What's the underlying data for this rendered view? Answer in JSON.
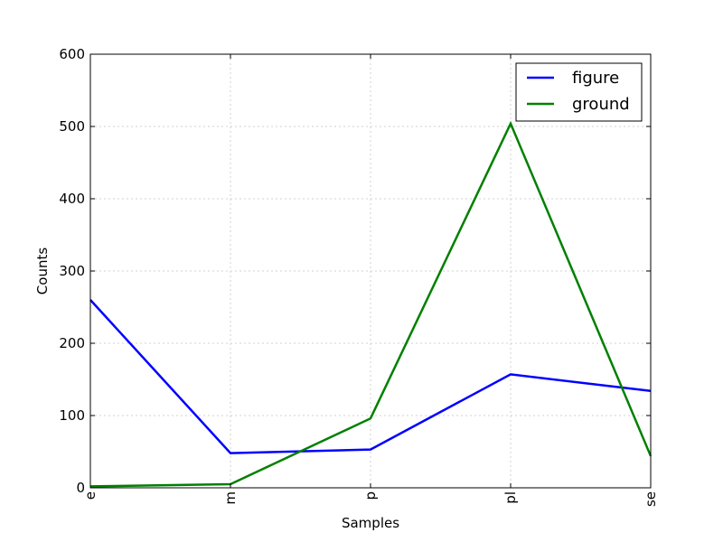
{
  "chart_data": {
    "type": "line",
    "categories": [
      "e",
      "m",
      "p",
      "pl",
      "se"
    ],
    "series": [
      {
        "name": "figure",
        "values": [
          260,
          48,
          53,
          157,
          134
        ],
        "color": "#0000ff"
      },
      {
        "name": "ground",
        "values": [
          2,
          5,
          96,
          504,
          44
        ],
        "color": "#008000"
      }
    ],
    "xlabel": "Samples",
    "ylabel": "Counts",
    "ylim": [
      0,
      600
    ],
    "yticks": [
      "0",
      "100",
      "200",
      "300",
      "400",
      "500",
      "600"
    ],
    "grid": true,
    "legend_position": "top-right"
  }
}
